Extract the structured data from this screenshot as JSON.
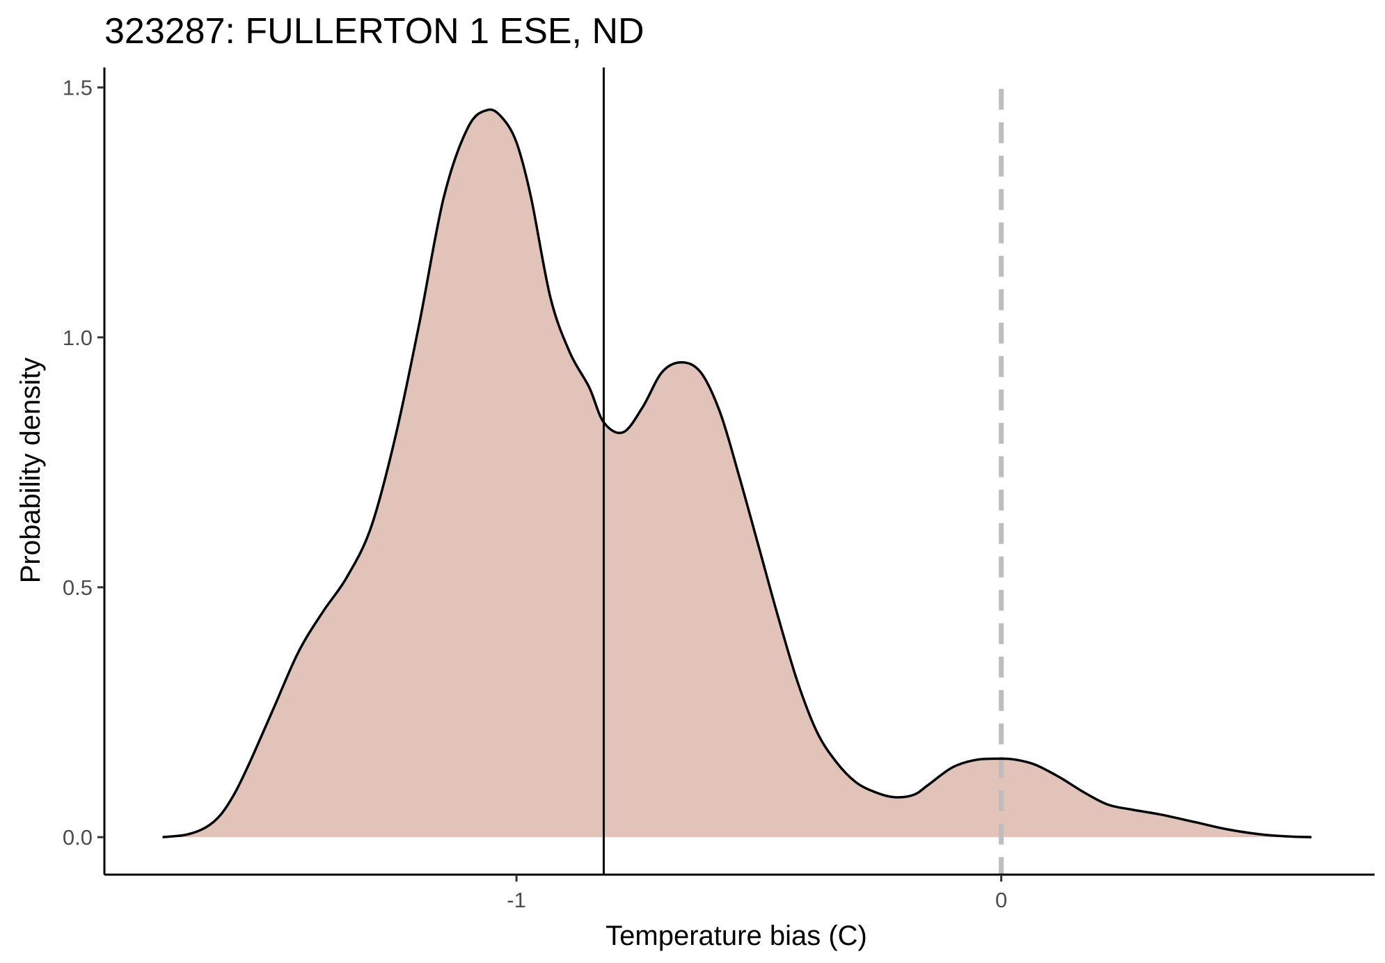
{
  "chart_data": {
    "type": "area",
    "title": "323287: FULLERTON 1 ESE, ND",
    "xlabel": "Temperature bias (C)",
    "ylabel": "Probability density",
    "xlim": [
      -1.85,
      0.77
    ],
    "ylim": [
      -0.075,
      1.54
    ],
    "x_ticks": [
      {
        "value": -1,
        "label": "-1"
      },
      {
        "value": 0,
        "label": "0"
      }
    ],
    "y_ticks": [
      {
        "value": 0.0,
        "label": "0.0"
      },
      {
        "value": 0.5,
        "label": "0.5"
      },
      {
        "value": 1.0,
        "label": "1.0"
      },
      {
        "value": 1.5,
        "label": "1.5"
      }
    ],
    "grid": false,
    "fill_color": "#e2c3ba",
    "line_color": "#000000",
    "reference_lines": [
      {
        "x": -0.82,
        "style": "solid",
        "color": "#000000"
      },
      {
        "x": 0,
        "style": "dashed",
        "color": "#bdbdbd"
      }
    ],
    "series": [
      {
        "x": [
          -1.73,
          -1.68,
          -1.64,
          -1.61,
          -1.58,
          -1.55,
          -1.5,
          -1.45,
          -1.4,
          -1.35,
          -1.3,
          -1.25,
          -1.2,
          -1.15,
          -1.1,
          -1.06,
          -1.03,
          -1.0,
          -0.97,
          -0.93,
          -0.89,
          -0.85,
          -0.82,
          -0.78,
          -0.74,
          -0.7,
          -0.66,
          -0.62,
          -0.58,
          -0.54,
          -0.5,
          -0.46,
          -0.42,
          -0.38,
          -0.34,
          -0.3,
          -0.26,
          -0.22,
          -0.18,
          -0.15,
          -0.1,
          -0.05,
          0.0,
          0.03,
          0.07,
          0.12,
          0.17,
          0.22,
          0.27,
          0.33,
          0.4,
          0.47,
          0.54,
          0.6,
          0.64
        ],
        "y": [
          0.0,
          0.005,
          0.02,
          0.045,
          0.09,
          0.15,
          0.26,
          0.37,
          0.45,
          0.52,
          0.62,
          0.8,
          1.03,
          1.28,
          1.42,
          1.455,
          1.44,
          1.39,
          1.28,
          1.08,
          0.97,
          0.9,
          0.83,
          0.81,
          0.86,
          0.93,
          0.95,
          0.93,
          0.85,
          0.72,
          0.58,
          0.44,
          0.31,
          0.21,
          0.15,
          0.11,
          0.09,
          0.08,
          0.085,
          0.105,
          0.14,
          0.155,
          0.157,
          0.155,
          0.145,
          0.12,
          0.09,
          0.065,
          0.055,
          0.045,
          0.03,
          0.015,
          0.005,
          0.001,
          0.0
        ]
      }
    ]
  }
}
